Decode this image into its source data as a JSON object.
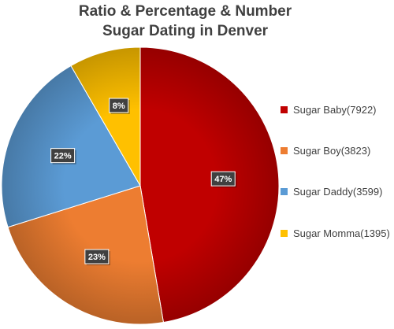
{
  "chart_data": {
    "type": "pie",
    "title_lines": [
      "Ratio & Percentage & Number",
      "Sugar Dating in Denver"
    ],
    "slices": [
      {
        "label": "Sugar Baby(7922)",
        "category": "Sugar Baby",
        "count": 7922,
        "percent": 47,
        "percent_label": "47%",
        "color": "#c00000"
      },
      {
        "label": "Sugar Boy(3823)",
        "category": "Sugar Boy",
        "count": 3823,
        "percent": 23,
        "percent_label": "23%",
        "color": "#ed7d31"
      },
      {
        "label": "Sugar Daddy(3599)",
        "category": "Sugar Daddy",
        "count": 3599,
        "percent": 22,
        "percent_label": "22%",
        "color": "#5b9bd5"
      },
      {
        "label": "Sugar Momma(1395)",
        "category": "Sugar Momma",
        "count": 1395,
        "percent": 8,
        "percent_label": "8%",
        "color": "#ffc000"
      }
    ],
    "legend_position": "right",
    "start_angle": "top, clockwise"
  }
}
